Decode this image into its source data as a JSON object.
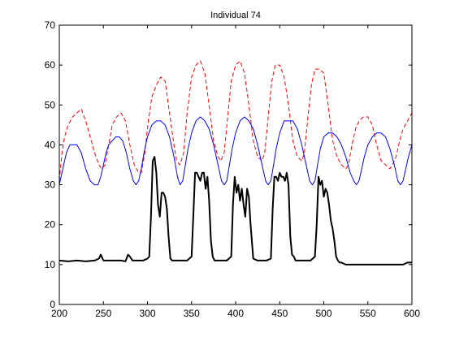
{
  "chart_data": {
    "type": "line",
    "title": "Individual 74",
    "xlabel": "",
    "ylabel": "",
    "xlim": [
      200,
      600
    ],
    "ylim": [
      0,
      70
    ],
    "xticks": [
      200,
      250,
      300,
      350,
      400,
      450,
      500,
      550,
      600
    ],
    "yticks": [
      0,
      10,
      20,
      30,
      40,
      50,
      60,
      70
    ],
    "grid": false,
    "legend": "none",
    "series": [
      {
        "style": "dashed",
        "color": "#ff0000",
        "x": [
          200,
          203,
          206,
          210,
          215,
          220,
          225,
          230,
          235,
          240,
          245,
          248,
          252,
          256,
          260,
          265,
          270,
          275,
          280,
          285,
          290,
          293,
          297,
          301,
          305,
          310,
          315,
          320,
          325,
          330,
          333,
          337,
          341,
          345,
          350,
          355,
          360,
          365,
          370,
          375,
          380,
          383,
          387,
          391,
          395,
          400,
          405,
          410,
          415,
          420,
          425,
          430,
          433,
          437,
          441,
          445,
          450,
          455,
          460,
          465,
          470,
          475,
          478,
          482,
          486,
          490,
          495,
          500,
          505,
          510,
          515,
          520,
          525,
          528,
          532,
          536,
          540,
          545,
          550,
          555,
          560,
          565,
          570,
          575,
          578,
          582,
          586,
          590,
          595,
          600
        ],
        "y": [
          31,
          38,
          42,
          45,
          47,
          48,
          49,
          46,
          42,
          38,
          35,
          34,
          35,
          40,
          45,
          47,
          48,
          46,
          40,
          35,
          33,
          33,
          38,
          46,
          52,
          55,
          57,
          56,
          48,
          40,
          36,
          35,
          38,
          48,
          57,
          60,
          61,
          58,
          50,
          41,
          37,
          36,
          38,
          47,
          56,
          60,
          61,
          58,
          50,
          41,
          37,
          36,
          38,
          47,
          56,
          60,
          60,
          57,
          50,
          41,
          37,
          36,
          38,
          47,
          55,
          59,
          59,
          58,
          50,
          41,
          37,
          35,
          34,
          35,
          40,
          44,
          46,
          47,
          47,
          45,
          40,
          36,
          35,
          34,
          35,
          37,
          41,
          44,
          46,
          48
        ]
      },
      {
        "style": "solid",
        "color": "#0000ff",
        "x": [
          200,
          204,
          208,
          212,
          216,
          220,
          225,
          230,
          235,
          240,
          244,
          247,
          250,
          253,
          256,
          260,
          264,
          268,
          272,
          276,
          280,
          284,
          287,
          290,
          293,
          296,
          300,
          305,
          310,
          315,
          320,
          325,
          330,
          334,
          337,
          340,
          343,
          346,
          350,
          355,
          360,
          365,
          370,
          375,
          380,
          384,
          387,
          390,
          393,
          396,
          400,
          405,
          410,
          415,
          420,
          425,
          430,
          434,
          437,
          440,
          443,
          446,
          450,
          455,
          460,
          465,
          470,
          475,
          480,
          484,
          487,
          490,
          493,
          496,
          500,
          505,
          510,
          515,
          520,
          525,
          530,
          534,
          537,
          540,
          543,
          546,
          550,
          555,
          560,
          565,
          570,
          575,
          580,
          584,
          587,
          590,
          593,
          596,
          600
        ],
        "y": [
          30,
          34,
          38,
          40,
          40,
          40,
          38,
          34,
          31,
          30,
          30,
          32,
          35,
          38,
          40,
          41,
          42,
          42,
          41,
          38,
          34,
          31,
          30,
          31,
          34,
          38,
          42,
          45,
          46,
          46,
          45,
          42,
          37,
          32,
          30,
          31,
          35,
          39,
          43,
          46,
          47,
          46,
          44,
          40,
          35,
          31,
          30,
          31,
          35,
          39,
          43,
          46,
          47,
          46,
          44,
          40,
          35,
          31,
          30,
          31,
          35,
          39,
          43,
          46,
          46,
          46,
          44,
          40,
          35,
          31,
          30,
          31,
          35,
          39,
          42,
          43,
          43,
          42,
          40,
          37,
          33,
          31,
          30,
          31,
          34,
          37,
          40,
          42,
          43,
          43,
          42,
          39,
          35,
          31,
          30,
          31,
          34,
          37,
          40
        ]
      },
      {
        "style": "solid-thick",
        "color": "#000000",
        "x": [
          200,
          210,
          220,
          230,
          240,
          245,
          247,
          250,
          255,
          260,
          270,
          275,
          278,
          280,
          283,
          285,
          290,
          295,
          300,
          302,
          304,
          306,
          308,
          310,
          312,
          314,
          316,
          318,
          320,
          322,
          324,
          326,
          328,
          330,
          335,
          340,
          345,
          350,
          352,
          354,
          356,
          358,
          360,
          362,
          364,
          366,
          368,
          370,
          372,
          374,
          376,
          378,
          380,
          385,
          390,
          395,
          397,
          399,
          401,
          403,
          405,
          407,
          409,
          411,
          413,
          415,
          417,
          420,
          425,
          430,
          435,
          440,
          442,
          444,
          446,
          448,
          450,
          452,
          454,
          456,
          458,
          460,
          462,
          464,
          466,
          468,
          470,
          475,
          480,
          485,
          490,
          492,
          494,
          496,
          498,
          500,
          502,
          504,
          506,
          508,
          510,
          512,
          514,
          516,
          518,
          520,
          525,
          530,
          540,
          550,
          560,
          570,
          580,
          590,
          595,
          600
        ],
        "y": [
          11,
          10.8,
          11,
          10.8,
          11,
          11.5,
          12.5,
          11,
          11,
          11,
          11,
          10.8,
          12.5,
          12,
          11,
          11,
          11,
          11,
          11.5,
          12,
          22,
          36,
          37,
          33,
          25,
          22,
          28,
          28,
          27,
          24,
          17,
          11.5,
          11,
          11,
          11,
          11,
          11,
          12,
          22,
          33,
          33,
          32,
          31,
          33,
          33,
          29,
          32,
          26,
          16,
          12,
          11,
          11,
          11,
          11,
          11,
          12,
          25,
          32,
          28,
          30,
          26,
          29,
          25,
          22,
          29,
          27,
          20,
          11.5,
          11,
          11,
          11,
          11.5,
          24,
          32,
          32,
          31,
          33,
          32,
          32,
          31,
          33,
          30,
          17,
          12.5,
          12,
          11,
          11,
          11,
          11,
          11,
          12,
          20,
          32,
          30,
          31,
          27,
          29,
          28,
          25,
          21,
          19,
          16,
          12,
          11,
          10.5,
          10.5,
          10,
          10,
          10,
          10,
          10,
          10,
          10,
          10,
          10.5,
          10.5
        ]
      }
    ]
  }
}
